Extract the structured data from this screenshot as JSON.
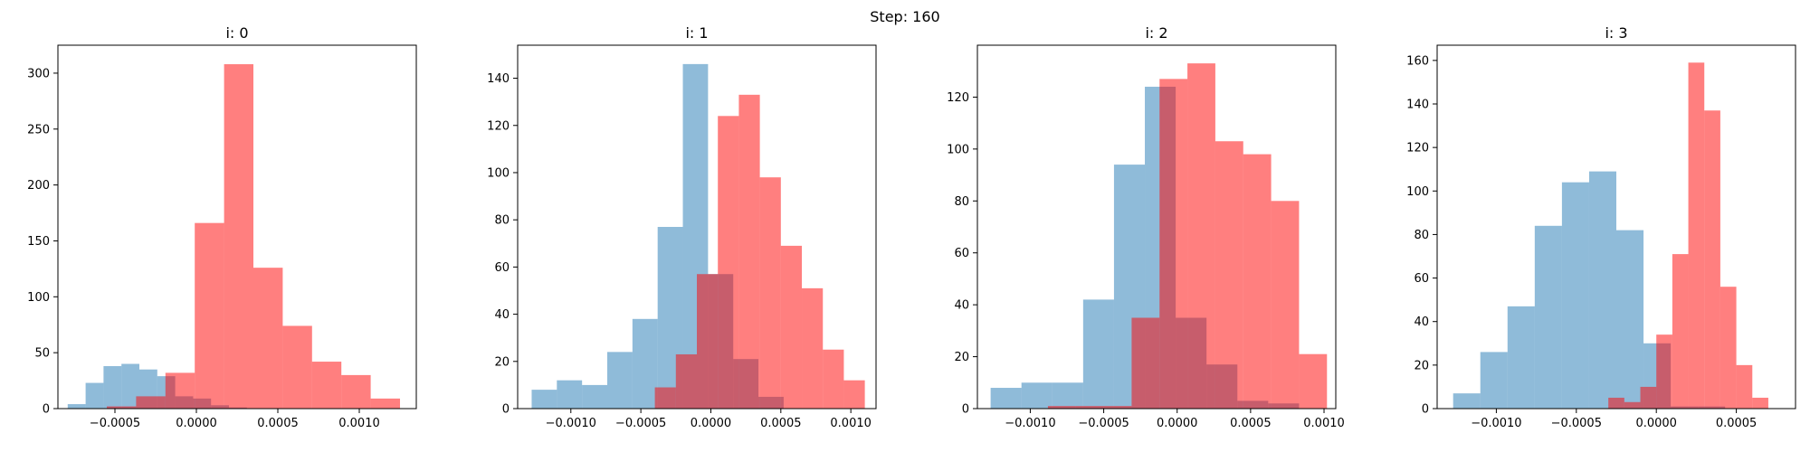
{
  "title": "Step: 160",
  "colors": {
    "blue": "#1f77b4",
    "red": "#ff0000",
    "axis": "#000000"
  },
  "chart_data": [
    {
      "type": "histogram",
      "title": "i: 0",
      "xlim": [
        -0.00085,
        0.00135
      ],
      "ylim": [
        0,
        325
      ],
      "xticks": [
        -0.0005,
        0.0,
        0.0005,
        0.001
      ],
      "xtick_labels": [
        "−0.0005",
        "0.0000",
        "0.0005",
        "0.0010"
      ],
      "yticks": [
        0,
        50,
        100,
        150,
        200,
        250,
        300
      ],
      "series": [
        {
          "color": "#1f77b4",
          "edges": [
            -0.00079,
            -0.00068,
            -0.00057,
            -0.00046,
            -0.00035,
            -0.00024,
            -0.00013,
            -2e-05,
            9e-05,
            0.0002,
            0.00031
          ],
          "counts": [
            4,
            23,
            38,
            40,
            35,
            29,
            11,
            9,
            3,
            1
          ]
        },
        {
          "color": "#ff0000",
          "edges": [
            -0.00055,
            -0.00037,
            -0.00019,
            -1e-05,
            0.00017,
            0.00035,
            0.00053,
            0.00071,
            0.00089,
            0.00107,
            0.00125
          ],
          "counts": [
            2,
            11,
            32,
            166,
            308,
            126,
            74,
            42,
            30,
            9
          ]
        }
      ]
    },
    {
      "type": "histogram",
      "title": "i: 1",
      "xlim": [
        -0.00138,
        0.00118
      ],
      "ylim": [
        0,
        154
      ],
      "xticks": [
        -0.001,
        -0.0005,
        0.0,
        0.0005,
        0.001
      ],
      "xtick_labels": [
        "−0.0010",
        "−0.0005",
        "0.0000",
        "0.0005",
        "0.0010"
      ],
      "yticks": [
        0,
        20,
        40,
        60,
        80,
        100,
        120,
        140
      ],
      "series": [
        {
          "color": "#1f77b4",
          "edges": [
            -0.00128,
            -0.0011,
            -0.00092,
            -0.00074,
            -0.00056,
            -0.00038,
            -0.0002,
            -2e-05,
            0.00016,
            0.00034,
            0.00052
          ],
          "counts": [
            8,
            12,
            10,
            24,
            38,
            77,
            146,
            57,
            21,
            5
          ]
        },
        {
          "color": "#ff0000",
          "edges": [
            -0.0004,
            -0.00025,
            -0.0001,
            5e-05,
            0.0002,
            0.00035,
            0.0005,
            0.00065,
            0.0008,
            0.00095,
            0.0011
          ],
          "counts": [
            9,
            23,
            57,
            124,
            133,
            98,
            69,
            51,
            25,
            12
          ]
        }
      ]
    },
    {
      "type": "histogram",
      "title": "i: 2",
      "xlim": [
        -0.00136,
        0.00108
      ],
      "ylim": [
        0,
        140
      ],
      "xticks": [
        -0.001,
        -0.0005,
        0.0,
        0.0005,
        0.001
      ],
      "xtick_labels": [
        "−0.0010",
        "−0.0005",
        "0.0000",
        "0.0005",
        "0.0010"
      ],
      "yticks": [
        0,
        20,
        40,
        60,
        80,
        100,
        120
      ],
      "series": [
        {
          "color": "#1f77b4",
          "edges": [
            -0.00127,
            -0.00106,
            -0.00085,
            -0.00064,
            -0.00043,
            -0.00022,
            -1e-05,
            0.0002,
            0.00041,
            0.00062,
            0.00083
          ],
          "counts": [
            8,
            10,
            10,
            42,
            94,
            124,
            35,
            17,
            3,
            2
          ]
        },
        {
          "color": "#ff0000",
          "edges": [
            -0.00088,
            -0.00069,
            -0.0005,
            -0.00031,
            -0.00012,
            7e-05,
            0.00026,
            0.00045,
            0.00064,
            0.00083,
            0.00102
          ],
          "counts": [
            1,
            1,
            1,
            35,
            127,
            133,
            103,
            98,
            80,
            21
          ]
        }
      ]
    },
    {
      "type": "histogram",
      "title": "i: 3",
      "xlim": [
        -0.00137,
        0.00087
      ],
      "ylim": [
        0,
        167
      ],
      "xticks": [
        -0.001,
        -0.0005,
        0.0,
        0.0005
      ],
      "xtick_labels": [
        "−0.0010",
        "−0.0005",
        "0.0000",
        "0.0005"
      ],
      "yticks": [
        0,
        20,
        40,
        60,
        80,
        100,
        120,
        140,
        160
      ],
      "series": [
        {
          "color": "#1f77b4",
          "edges": [
            -0.00127,
            -0.0011,
            -0.00093,
            -0.00076,
            -0.00059,
            -0.00042,
            -0.00025,
            -8e-05,
            9e-05,
            0.00026,
            0.00043
          ],
          "counts": [
            7,
            26,
            47,
            84,
            104,
            109,
            82,
            30,
            1,
            1
          ]
        },
        {
          "color": "#ff0000",
          "edges": [
            -0.0003,
            -0.0002,
            -0.0001,
            0.0,
            0.0001,
            0.0002,
            0.0003,
            0.0004,
            0.0005,
            0.0006,
            0.0007
          ],
          "counts": [
            5,
            3,
            10,
            34,
            71,
            159,
            137,
            56,
            20,
            5
          ]
        }
      ]
    }
  ]
}
